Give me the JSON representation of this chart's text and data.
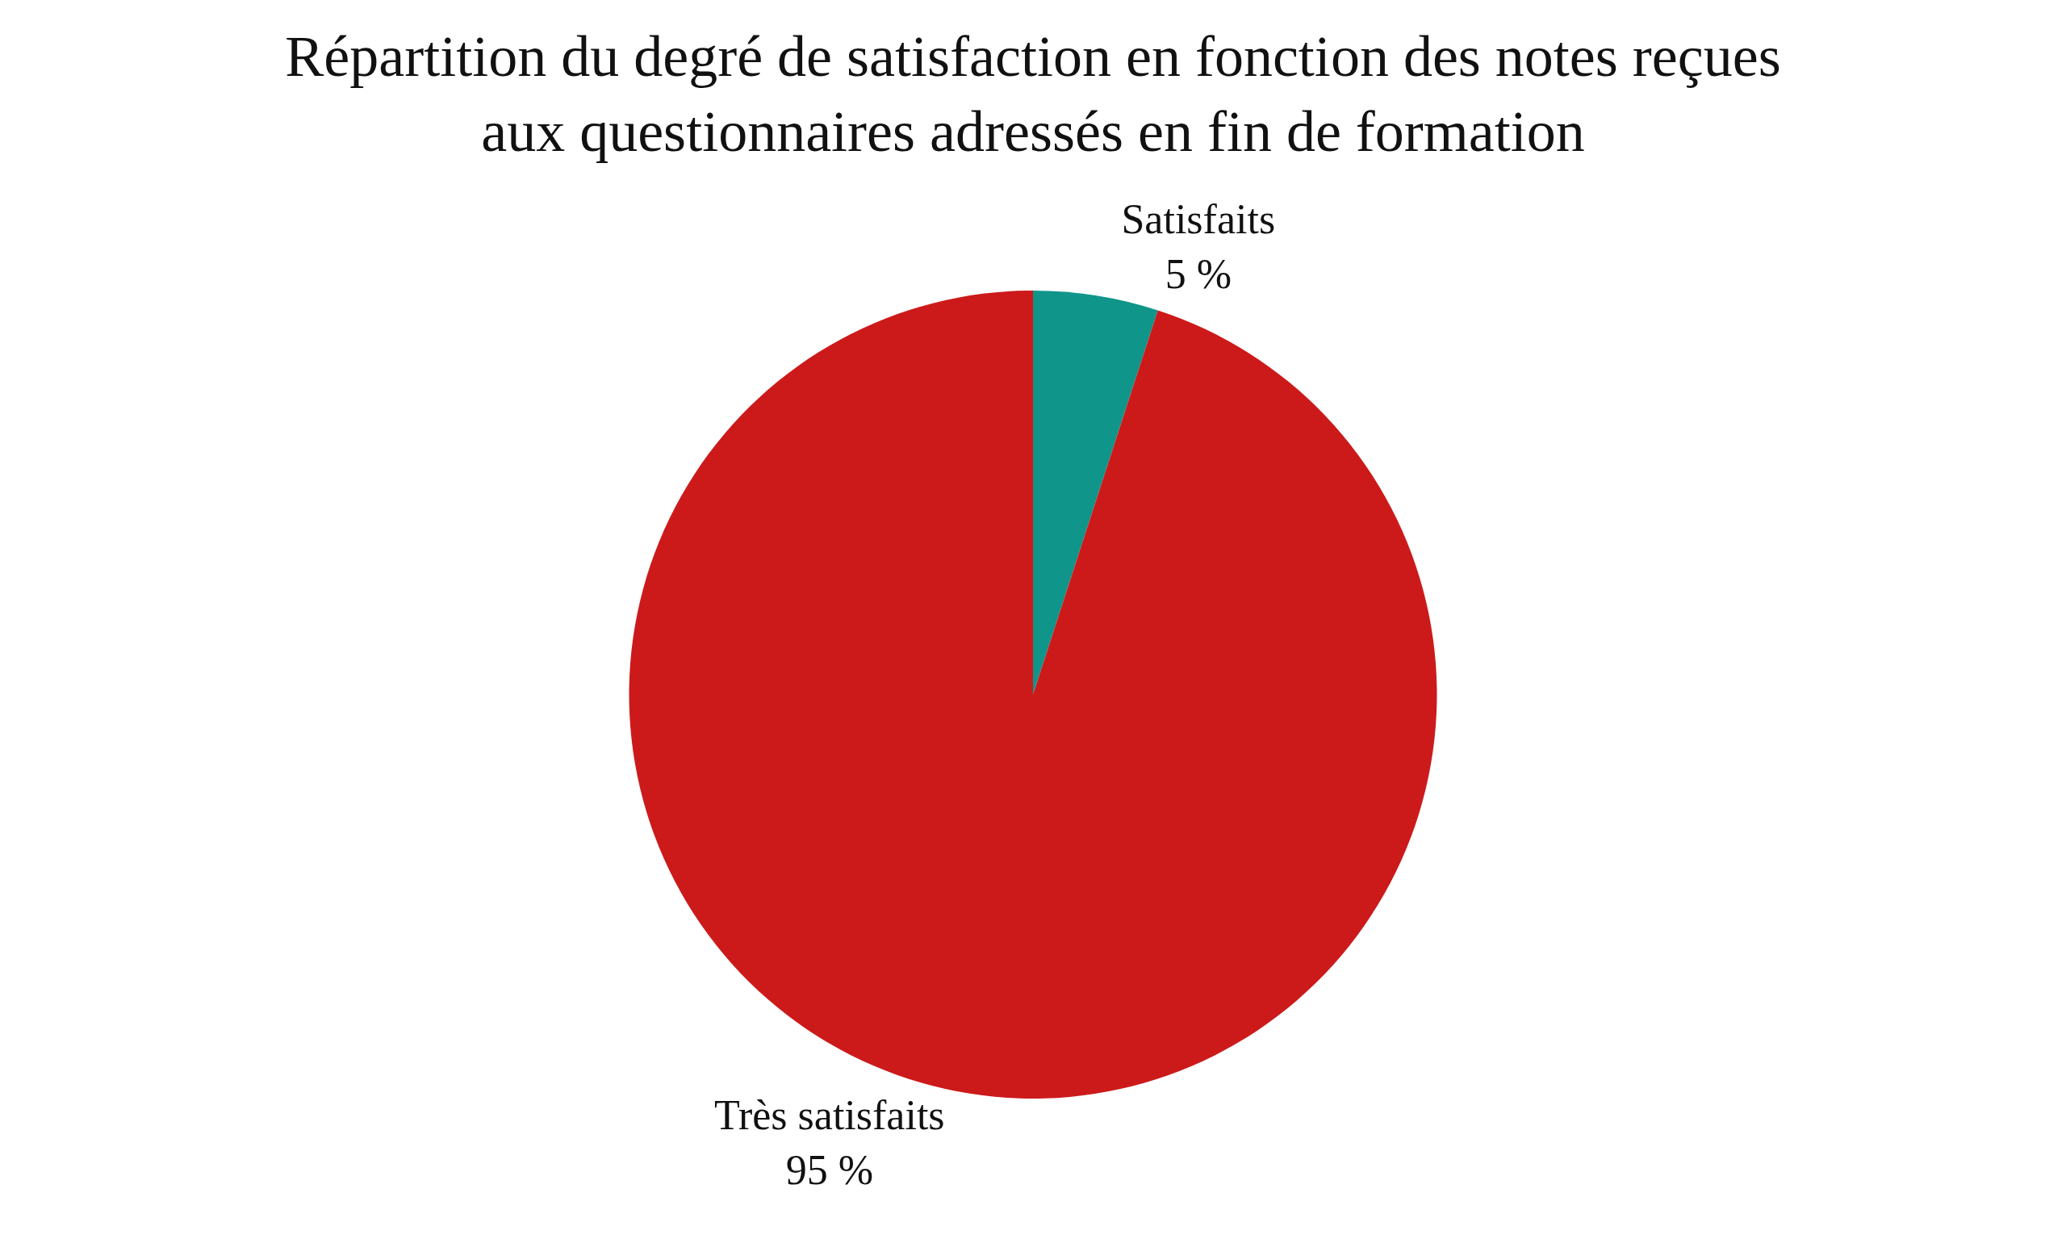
{
  "chart_data": {
    "type": "pie",
    "title": "Répartition du degré de satisfaction en fonction des notes reçues\naux questionnaires adressés en fin de formation",
    "categories": [
      "Satisfaits",
      "Très satisfaits"
    ],
    "values": [
      5,
      95
    ],
    "value_labels": [
      "5 %",
      "95 %"
    ],
    "colors": [
      "#10958a",
      "#cc1a1a"
    ],
    "legend": false
  }
}
